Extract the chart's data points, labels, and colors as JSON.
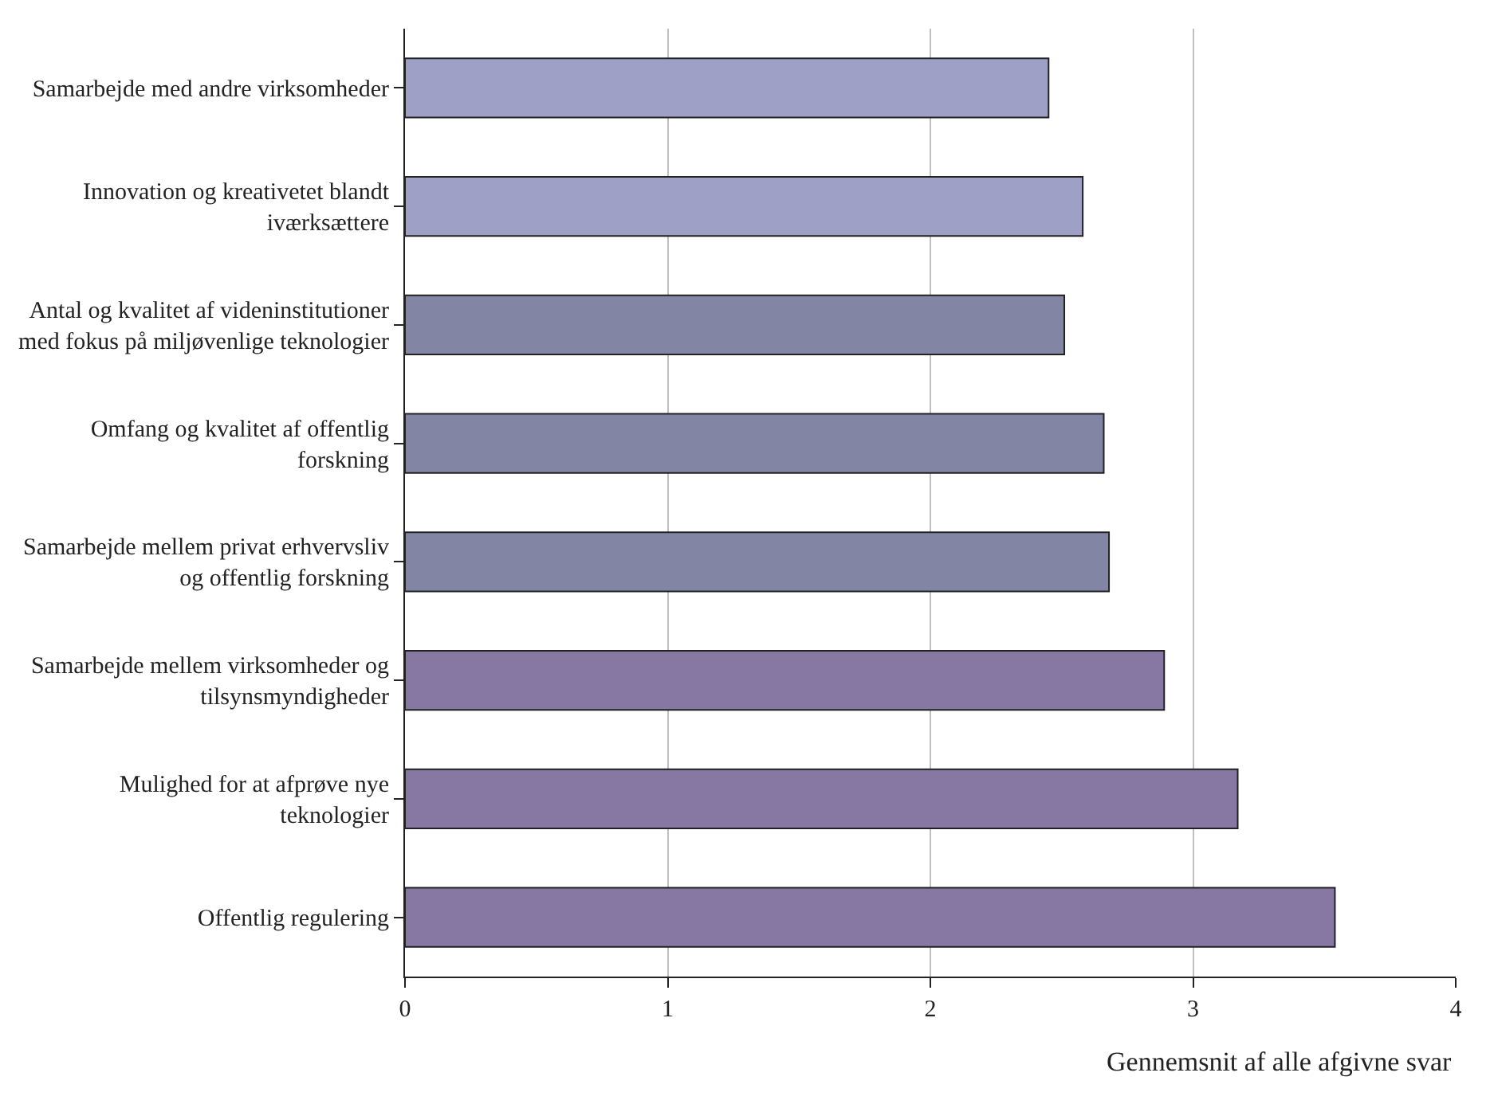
{
  "chart_data": {
    "type": "bar",
    "orientation": "horizontal",
    "xlabel": "Gennemsnit af alle afgivne svar",
    "categories": [
      "Samarbejde med andre virksomheder",
      "Innovation og kreativetet blandt\niværksættere",
      "Antal og kvalitet af videninstitutioner\nmed fokus på miljøvenlige teknologier",
      "Omfang og kvalitet af offentlig\nforskning",
      "Samarbejde mellem privat erhvervsliv\nog offentlig forskning",
      "Samarbejde mellem virksomheder og\ntilsynsmyndigheder",
      "Mulighed for at afprøve nye\nteknologier",
      "Offentlig regulering"
    ],
    "values": [
      2.45,
      2.58,
      2.51,
      2.66,
      2.68,
      2.89,
      3.17,
      3.54
    ],
    "colors": [
      "#9ea0c6",
      "#9ea0c6",
      "#8285a4",
      "#8285a4",
      "#8285a4",
      "#8677a3",
      "#8677a3",
      "#8677a3"
    ],
    "xlim": [
      0,
      4
    ],
    "xticks": [
      0,
      1,
      2,
      3,
      4
    ],
    "grid": "x"
  }
}
